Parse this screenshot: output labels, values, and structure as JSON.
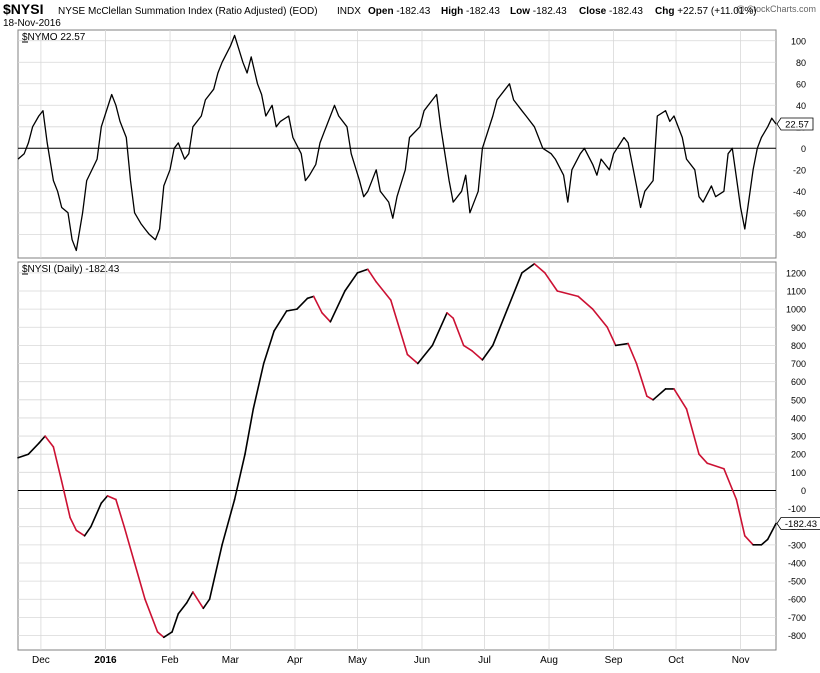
{
  "header": {
    "symbol": "$NYSI",
    "name": "NYSE McClellan Summation Index (Ratio Adjusted) (EOD)",
    "exchange": "INDX",
    "date": "18-Nov-2016",
    "watermark": "@ StockCharts.com",
    "ohlc": [
      {
        "label": "Open",
        "value": "-182.43"
      },
      {
        "label": "High",
        "value": "-182.43"
      },
      {
        "label": "Low",
        "value": "-182.43"
      },
      {
        "label": "Close",
        "value": "-182.43"
      },
      {
        "label": "Chg",
        "value": "+22.57 (+11.01%)"
      }
    ]
  },
  "colors": {
    "line": "#000000",
    "falling": "#cc1133",
    "grid": "#d8d8d8",
    "frame": "#808080"
  },
  "chart_data": [
    {
      "type": "line",
      "panel": "top",
      "legend": "$NYMO 22.57",
      "last_value": "22.57",
      "ylim": [
        -102,
        110
      ],
      "yticks": [
        -80,
        -60,
        -40,
        -20,
        0,
        20,
        40,
        60,
        80,
        100
      ],
      "zero_line": true,
      "x_start": "2015-11-20",
      "x_end": "2016-11-18",
      "series": [
        {
          "points": [
            [
              "2015-11-20",
              -10
            ],
            [
              "2015-11-23",
              -5
            ],
            [
              "2015-11-25",
              5
            ],
            [
              "2015-11-27",
              20
            ],
            [
              "2015-11-30",
              30
            ],
            [
              "2015-12-02",
              35
            ],
            [
              "2015-12-04",
              5
            ],
            [
              "2015-12-07",
              -30
            ],
            [
              "2015-12-09",
              -40
            ],
            [
              "2015-12-11",
              -55
            ],
            [
              "2015-12-14",
              -60
            ],
            [
              "2015-12-16",
              -85
            ],
            [
              "2015-12-18",
              -95
            ],
            [
              "2015-12-21",
              -60
            ],
            [
              "2015-12-23",
              -30
            ],
            [
              "2015-12-28",
              -10
            ],
            [
              "2015-12-30",
              20
            ],
            [
              "2016-01-04",
              50
            ],
            [
              "2016-01-06",
              40
            ],
            [
              "2016-01-08",
              25
            ],
            [
              "2016-01-11",
              10
            ],
            [
              "2016-01-13",
              -30
            ],
            [
              "2016-01-15",
              -60
            ],
            [
              "2016-01-18",
              -70
            ],
            [
              "2016-01-20",
              -75
            ],
            [
              "2016-01-22",
              -80
            ],
            [
              "2016-01-25",
              -85
            ],
            [
              "2016-01-27",
              -75
            ],
            [
              "2016-01-29",
              -35
            ],
            [
              "2016-02-01",
              -20
            ],
            [
              "2016-02-03",
              0
            ],
            [
              "2016-02-05",
              5
            ],
            [
              "2016-02-08",
              -10
            ],
            [
              "2016-02-10",
              -5
            ],
            [
              "2016-02-12",
              20
            ],
            [
              "2016-02-16",
              30
            ],
            [
              "2016-02-18",
              45
            ],
            [
              "2016-02-22",
              55
            ],
            [
              "2016-02-24",
              70
            ],
            [
              "2016-02-26",
              80
            ],
            [
              "2016-03-01",
              95
            ],
            [
              "2016-03-03",
              105
            ],
            [
              "2016-03-07",
              80
            ],
            [
              "2016-03-09",
              70
            ],
            [
              "2016-03-11",
              85
            ],
            [
              "2016-03-14",
              60
            ],
            [
              "2016-03-16",
              50
            ],
            [
              "2016-03-18",
              30
            ],
            [
              "2016-03-21",
              40
            ],
            [
              "2016-03-23",
              20
            ],
            [
              "2016-03-25",
              25
            ],
            [
              "2016-03-29",
              30
            ],
            [
              "2016-03-31",
              10
            ],
            [
              "2016-04-04",
              -5
            ],
            [
              "2016-04-06",
              -30
            ],
            [
              "2016-04-08",
              -25
            ],
            [
              "2016-04-11",
              -15
            ],
            [
              "2016-04-13",
              5
            ],
            [
              "2016-04-15",
              15
            ],
            [
              "2016-04-18",
              30
            ],
            [
              "2016-04-20",
              40
            ],
            [
              "2016-04-22",
              30
            ],
            [
              "2016-04-26",
              20
            ],
            [
              "2016-04-28",
              -5
            ],
            [
              "2016-05-02",
              -30
            ],
            [
              "2016-05-04",
              -45
            ],
            [
              "2016-05-06",
              -40
            ],
            [
              "2016-05-10",
              -20
            ],
            [
              "2016-05-12",
              -40
            ],
            [
              "2016-05-16",
              -50
            ],
            [
              "2016-05-18",
              -65
            ],
            [
              "2016-05-20",
              -45
            ],
            [
              "2016-05-24",
              -20
            ],
            [
              "2016-05-26",
              10
            ],
            [
              "2016-05-31",
              20
            ],
            [
              "2016-06-02",
              35
            ],
            [
              "2016-06-06",
              45
            ],
            [
              "2016-06-08",
              50
            ],
            [
              "2016-06-10",
              20
            ],
            [
              "2016-06-14",
              -30
            ],
            [
              "2016-06-16",
              -50
            ],
            [
              "2016-06-20",
              -40
            ],
            [
              "2016-06-22",
              -25
            ],
            [
              "2016-06-24",
              -60
            ],
            [
              "2016-06-28",
              -40
            ],
            [
              "2016-06-30",
              0
            ],
            [
              "2016-07-05",
              30
            ],
            [
              "2016-07-07",
              45
            ],
            [
              "2016-07-11",
              55
            ],
            [
              "2016-07-13",
              60
            ],
            [
              "2016-07-15",
              45
            ],
            [
              "2016-07-19",
              35
            ],
            [
              "2016-07-21",
              30
            ],
            [
              "2016-07-25",
              20
            ],
            [
              "2016-07-27",
              10
            ],
            [
              "2016-07-29",
              0
            ],
            [
              "2016-08-02",
              -5
            ],
            [
              "2016-08-04",
              -10
            ],
            [
              "2016-08-08",
              -25
            ],
            [
              "2016-08-10",
              -50
            ],
            [
              "2016-08-12",
              -20
            ],
            [
              "2016-08-16",
              -5
            ],
            [
              "2016-08-18",
              0
            ],
            [
              "2016-08-22",
              -15
            ],
            [
              "2016-08-24",
              -25
            ],
            [
              "2016-08-26",
              -10
            ],
            [
              "2016-08-30",
              -20
            ],
            [
              "2016-09-01",
              -5
            ],
            [
              "2016-09-06",
              10
            ],
            [
              "2016-09-08",
              5
            ],
            [
              "2016-09-12",
              -35
            ],
            [
              "2016-09-14",
              -55
            ],
            [
              "2016-09-16",
              -40
            ],
            [
              "2016-09-20",
              -30
            ],
            [
              "2016-09-22",
              30
            ],
            [
              "2016-09-26",
              35
            ],
            [
              "2016-09-28",
              25
            ],
            [
              "2016-09-30",
              30
            ],
            [
              "2016-10-04",
              10
            ],
            [
              "2016-10-06",
              -10
            ],
            [
              "2016-10-10",
              -20
            ],
            [
              "2016-10-12",
              -45
            ],
            [
              "2016-10-14",
              -50
            ],
            [
              "2016-10-18",
              -35
            ],
            [
              "2016-10-20",
              -45
            ],
            [
              "2016-10-24",
              -40
            ],
            [
              "2016-10-26",
              -5
            ],
            [
              "2016-10-28",
              0
            ],
            [
              "2016-11-01",
              -55
            ],
            [
              "2016-11-03",
              -75
            ],
            [
              "2016-11-07",
              -20
            ],
            [
              "2016-11-09",
              0
            ],
            [
              "2016-11-11",
              10
            ],
            [
              "2016-11-14",
              20
            ],
            [
              "2016-11-16",
              28
            ],
            [
              "2016-11-18",
              22.57
            ]
          ]
        }
      ]
    },
    {
      "type": "line",
      "panel": "bottom",
      "legend": "$NYSI (Daily) -182.43",
      "last_value": "-182.43",
      "ylim": [
        -880,
        1260
      ],
      "yticks": [
        -800,
        -700,
        -600,
        -500,
        -400,
        -300,
        -200,
        -100,
        0,
        100,
        200,
        300,
        400,
        500,
        600,
        700,
        800,
        900,
        1000,
        1100,
        1200
      ],
      "zero_line": true,
      "x_start": "2015-11-20",
      "x_end": "2016-11-18",
      "xticks": [
        {
          "date": "2015-12-01",
          "label": "Dec",
          "bold": false
        },
        {
          "date": "2016-01-01",
          "label": "2016",
          "bold": true
        },
        {
          "date": "2016-02-01",
          "label": "Feb",
          "bold": false
        },
        {
          "date": "2016-03-01",
          "label": "Mar",
          "bold": false
        },
        {
          "date": "2016-04-01",
          "label": "Apr",
          "bold": false
        },
        {
          "date": "2016-05-01",
          "label": "May",
          "bold": false
        },
        {
          "date": "2016-06-01",
          "label": "Jun",
          "bold": false
        },
        {
          "date": "2016-07-01",
          "label": "Jul",
          "bold": false
        },
        {
          "date": "2016-08-01",
          "label": "Aug",
          "bold": false
        },
        {
          "date": "2016-09-01",
          "label": "Sep",
          "bold": false
        },
        {
          "date": "2016-10-01",
          "label": "Oct",
          "bold": false
        },
        {
          "date": "2016-11-01",
          "label": "Nov",
          "bold": false
        }
      ],
      "series": [
        {
          "points": [
            [
              "2015-11-20",
              180
            ],
            [
              "2015-11-25",
              200
            ],
            [
              "2015-11-30",
              260
            ],
            [
              "2015-12-03",
              300
            ],
            [
              "2015-12-07",
              240
            ],
            [
              "2015-12-11",
              50
            ],
            [
              "2015-12-15",
              -150
            ],
            [
              "2015-12-18",
              -220
            ],
            [
              "2015-12-22",
              -250
            ],
            [
              "2015-12-25",
              -200
            ],
            [
              "2015-12-30",
              -70
            ],
            [
              "2016-01-02",
              -30
            ],
            [
              "2016-01-06",
              -50
            ],
            [
              "2016-01-10",
              -200
            ],
            [
              "2016-01-15",
              -400
            ],
            [
              "2016-01-20",
              -600
            ],
            [
              "2016-01-26",
              -780
            ],
            [
              "2016-01-29",
              -810
            ],
            [
              "2016-02-02",
              -780
            ],
            [
              "2016-02-05",
              -680
            ],
            [
              "2016-02-09",
              -620
            ],
            [
              "2016-02-12",
              -560
            ],
            [
              "2016-02-17",
              -650
            ],
            [
              "2016-02-20",
              -600
            ],
            [
              "2016-02-26",
              -300
            ],
            [
              "2016-03-03",
              -50
            ],
            [
              "2016-03-08",
              200
            ],
            [
              "2016-03-12",
              450
            ],
            [
              "2016-03-17",
              700
            ],
            [
              "2016-03-22",
              880
            ],
            [
              "2016-03-28",
              990
            ],
            [
              "2016-04-02",
              1000
            ],
            [
              "2016-04-07",
              1060
            ],
            [
              "2016-04-10",
              1070
            ],
            [
              "2016-04-14",
              980
            ],
            [
              "2016-04-18",
              930
            ],
            [
              "2016-04-25",
              1100
            ],
            [
              "2016-05-01",
              1200
            ],
            [
              "2016-05-06",
              1220
            ],
            [
              "2016-05-10",
              1150
            ],
            [
              "2016-05-17",
              1050
            ],
            [
              "2016-05-25",
              750
            ],
            [
              "2016-05-30",
              700
            ],
            [
              "2016-06-06",
              800
            ],
            [
              "2016-06-13",
              980
            ],
            [
              "2016-06-16",
              950
            ],
            [
              "2016-06-21",
              800
            ],
            [
              "2016-06-25",
              770
            ],
            [
              "2016-06-30",
              720
            ],
            [
              "2016-07-05",
              800
            ],
            [
              "2016-07-12",
              1000
            ],
            [
              "2016-07-19",
              1200
            ],
            [
              "2016-07-25",
              1250
            ],
            [
              "2016-07-30",
              1200
            ],
            [
              "2016-08-05",
              1100
            ],
            [
              "2016-08-15",
              1070
            ],
            [
              "2016-08-22",
              1000
            ],
            [
              "2016-08-29",
              900
            ],
            [
              "2016-09-02",
              800
            ],
            [
              "2016-09-08",
              810
            ],
            [
              "2016-09-12",
              700
            ],
            [
              "2016-09-17",
              520
            ],
            [
              "2016-09-20",
              500
            ],
            [
              "2016-09-26",
              560
            ],
            [
              "2016-09-30",
              560
            ],
            [
              "2016-10-06",
              450
            ],
            [
              "2016-10-12",
              200
            ],
            [
              "2016-10-16",
              150
            ],
            [
              "2016-10-24",
              120
            ],
            [
              "2016-10-30",
              -50
            ],
            [
              "2016-11-03",
              -250
            ],
            [
              "2016-11-07",
              -300
            ],
            [
              "2016-11-11",
              -300
            ],
            [
              "2016-11-14",
              -270
            ],
            [
              "2016-11-18",
              -182.43
            ]
          ]
        }
      ]
    }
  ]
}
